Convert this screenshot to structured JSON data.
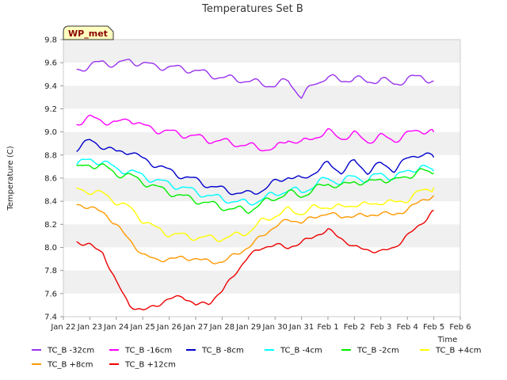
{
  "chart_data": {
    "type": "line",
    "title": "Temperatures Set B",
    "xlabel": "Time",
    "ylabel": "Temperature (C)",
    "badge": "WP_met",
    "xlim": [
      0,
      15
    ],
    "ylim": [
      7.4,
      9.8
    ],
    "yticks": [
      7.4,
      7.6,
      7.8,
      8.0,
      8.2,
      8.4,
      8.6,
      8.8,
      9.0,
      9.2,
      9.4,
      9.6,
      9.8
    ],
    "ytick_labels": [
      "7.4",
      "7.6",
      "7.8",
      "8.0",
      "8.2",
      "8.4",
      "8.6",
      "8.8",
      "9.0",
      "9.2",
      "9.4",
      "9.6",
      "9.8"
    ],
    "xtick_labels": [
      "Jan 22",
      "Jan 23",
      "Jan 24",
      "Jan 25",
      "Jan 26",
      "Jan 27",
      "Jan 28",
      "Jan 29",
      "Jan 30",
      "Jan 31",
      "Feb 1",
      "Feb 2",
      "Feb 3",
      "Feb 4",
      "Feb 5",
      "Feb 6"
    ],
    "grid": "horizontal bands",
    "legend_position": "bottom",
    "series": [
      {
        "name": "TC_B -32cm",
        "color": "#9933ee",
        "x": [
          0.5,
          1,
          1.5,
          2,
          2.5,
          3,
          3.5,
          4,
          4.5,
          5,
          5.5,
          6,
          6.5,
          7,
          7.5,
          8,
          8.5,
          9,
          9.5,
          10,
          10.5,
          11,
          11.5,
          12,
          12.5,
          13,
          13.5,
          14
        ],
        "y": [
          9.54,
          9.57,
          9.61,
          9.58,
          9.62,
          9.59,
          9.57,
          9.56,
          9.55,
          9.53,
          9.5,
          9.47,
          9.46,
          9.44,
          9.42,
          9.4,
          9.45,
          9.3,
          9.42,
          9.48,
          9.44,
          9.47,
          9.43,
          9.46,
          9.41,
          9.46,
          9.48,
          9.44
        ]
      },
      {
        "name": "TC_B -16cm",
        "color": "#ff00ff",
        "x": [
          0.5,
          1,
          1.5,
          2,
          2.5,
          3,
          3.5,
          4,
          4.5,
          5,
          5.5,
          6,
          6.5,
          7,
          7.5,
          8,
          8.5,
          9,
          9.5,
          10,
          10.5,
          11,
          11.5,
          12,
          12.5,
          13,
          13.5,
          14
        ],
        "y": [
          9.08,
          9.12,
          9.1,
          9.07,
          9.12,
          9.05,
          9.02,
          9.0,
          8.98,
          8.96,
          8.93,
          8.92,
          8.9,
          8.88,
          8.86,
          8.85,
          8.94,
          8.9,
          8.96,
          9.0,
          8.95,
          8.98,
          8.92,
          8.96,
          8.93,
          8.98,
          9.02,
          9.0
        ]
      },
      {
        "name": "TC_B -8cm",
        "color": "#0000cc",
        "x": [
          0.5,
          1,
          1.5,
          2,
          2.5,
          3,
          3.5,
          4,
          4.5,
          5,
          5.5,
          6,
          6.5,
          7,
          7.5,
          8,
          8.5,
          9,
          9.5,
          10,
          10.5,
          11,
          11.5,
          12,
          12.5,
          13,
          13.5,
          14
        ],
        "y": [
          8.86,
          8.92,
          8.88,
          8.82,
          8.84,
          8.76,
          8.72,
          8.66,
          8.62,
          8.58,
          8.54,
          8.5,
          8.48,
          8.46,
          8.5,
          8.56,
          8.62,
          8.58,
          8.66,
          8.72,
          8.66,
          8.74,
          8.66,
          8.72,
          8.68,
          8.76,
          8.82,
          8.78
        ]
      },
      {
        "name": "TC_B -4cm",
        "color": "#00ffff",
        "x": [
          0.5,
          1,
          1.5,
          2,
          2.5,
          3,
          3.5,
          4,
          4.5,
          5,
          5.5,
          6,
          6.5,
          7,
          7.5,
          8,
          8.5,
          9,
          9.5,
          10,
          10.5,
          11,
          11.5,
          12,
          12.5,
          13,
          13.5,
          14
        ],
        "y": [
          8.72,
          8.76,
          8.74,
          8.68,
          8.66,
          8.62,
          8.58,
          8.55,
          8.52,
          8.48,
          8.45,
          8.42,
          8.4,
          8.38,
          8.42,
          8.46,
          8.5,
          8.48,
          8.54,
          8.6,
          8.56,
          8.62,
          8.58,
          8.64,
          8.6,
          8.66,
          8.7,
          8.66
        ]
      },
      {
        "name": "TC_B -2cm",
        "color": "#00ee00",
        "x": [
          0.5,
          1,
          1.5,
          2,
          2.5,
          3,
          3.5,
          4,
          4.5,
          5,
          5.5,
          6,
          6.5,
          7,
          7.5,
          8,
          8.5,
          9,
          9.5,
          10,
          10.5,
          11,
          11.5,
          12,
          12.5,
          13,
          13.5,
          14
        ],
        "y": [
          8.68,
          8.72,
          8.7,
          8.64,
          8.62,
          8.57,
          8.52,
          8.48,
          8.44,
          8.41,
          8.38,
          8.35,
          8.33,
          8.32,
          8.38,
          8.43,
          8.47,
          8.45,
          8.5,
          8.56,
          8.52,
          8.58,
          8.55,
          8.6,
          8.57,
          8.62,
          8.66,
          8.64
        ]
      },
      {
        "name": "TC_B +4cm",
        "color": "#ffff00",
        "x": [
          0.5,
          1,
          1.5,
          2,
          2.5,
          3,
          3.5,
          4,
          4.5,
          5,
          5.5,
          6,
          6.5,
          7,
          7.5,
          8,
          8.5,
          9,
          9.5,
          10,
          10.5,
          11,
          11.5,
          12,
          12.5,
          13,
          13.5,
          14
        ],
        "y": [
          8.5,
          8.49,
          8.46,
          8.4,
          8.34,
          8.24,
          8.16,
          8.12,
          8.1,
          8.09,
          8.08,
          8.08,
          8.1,
          8.14,
          8.22,
          8.28,
          8.32,
          8.3,
          8.34,
          8.36,
          8.34,
          8.38,
          8.36,
          8.4,
          8.38,
          8.42,
          8.48,
          8.52
        ]
      },
      {
        "name": "TC_B +8cm",
        "color": "#ff9900",
        "x": [
          0.5,
          1,
          1.5,
          2,
          2.5,
          3,
          3.5,
          4,
          4.5,
          5,
          5.5,
          6,
          6.5,
          7,
          7.5,
          8,
          8.5,
          9,
          9.5,
          10,
          10.5,
          11,
          11.5,
          12,
          12.5,
          13,
          13.5,
          14
        ],
        "y": [
          8.37,
          8.35,
          8.3,
          8.2,
          8.06,
          7.94,
          7.89,
          7.9,
          7.91,
          7.9,
          7.88,
          7.87,
          7.94,
          8.0,
          8.1,
          8.18,
          8.24,
          8.22,
          8.26,
          8.3,
          8.26,
          8.28,
          8.27,
          8.3,
          8.28,
          8.33,
          8.4,
          8.45
        ]
      },
      {
        "name": "TC_B +12cm",
        "color": "#ee0000",
        "x": [
          0.5,
          1,
          1.5,
          2,
          2.5,
          3,
          3.5,
          4,
          4.5,
          5,
          5.5,
          6,
          6.5,
          7,
          7.5,
          8,
          8.5,
          9,
          9.5,
          10,
          10.5,
          11,
          11.5,
          12,
          12.5,
          13,
          13.5,
          14
        ],
        "y": [
          8.05,
          8.02,
          7.95,
          7.7,
          7.5,
          7.45,
          7.5,
          7.55,
          7.58,
          7.5,
          7.52,
          7.62,
          7.78,
          7.92,
          8.0,
          8.02,
          8.0,
          8.04,
          8.1,
          8.15,
          8.08,
          8.0,
          7.98,
          7.96,
          8.0,
          8.1,
          8.2,
          8.32
        ]
      }
    ]
  }
}
